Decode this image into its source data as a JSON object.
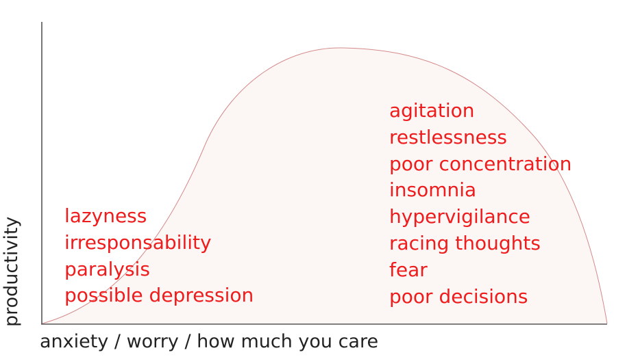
{
  "axes": {
    "x_label": "anxiety / worry / how much you care",
    "y_label": "productivity"
  },
  "low_side": {
    "items": [
      "lazyness",
      "irresponsability",
      "paralysis",
      "possible depression"
    ]
  },
  "high_side": {
    "items": [
      "agitation",
      "restlessness",
      "poor concentration",
      "insomnia",
      "hypervigilance",
      "racing thoughts",
      "fear",
      "poor decisions"
    ]
  },
  "colors": {
    "text_accent": "#ee1c1c",
    "curve_stroke": "#d48a8a",
    "curve_fill": "#fcf6f5",
    "axis": "#555555"
  }
}
